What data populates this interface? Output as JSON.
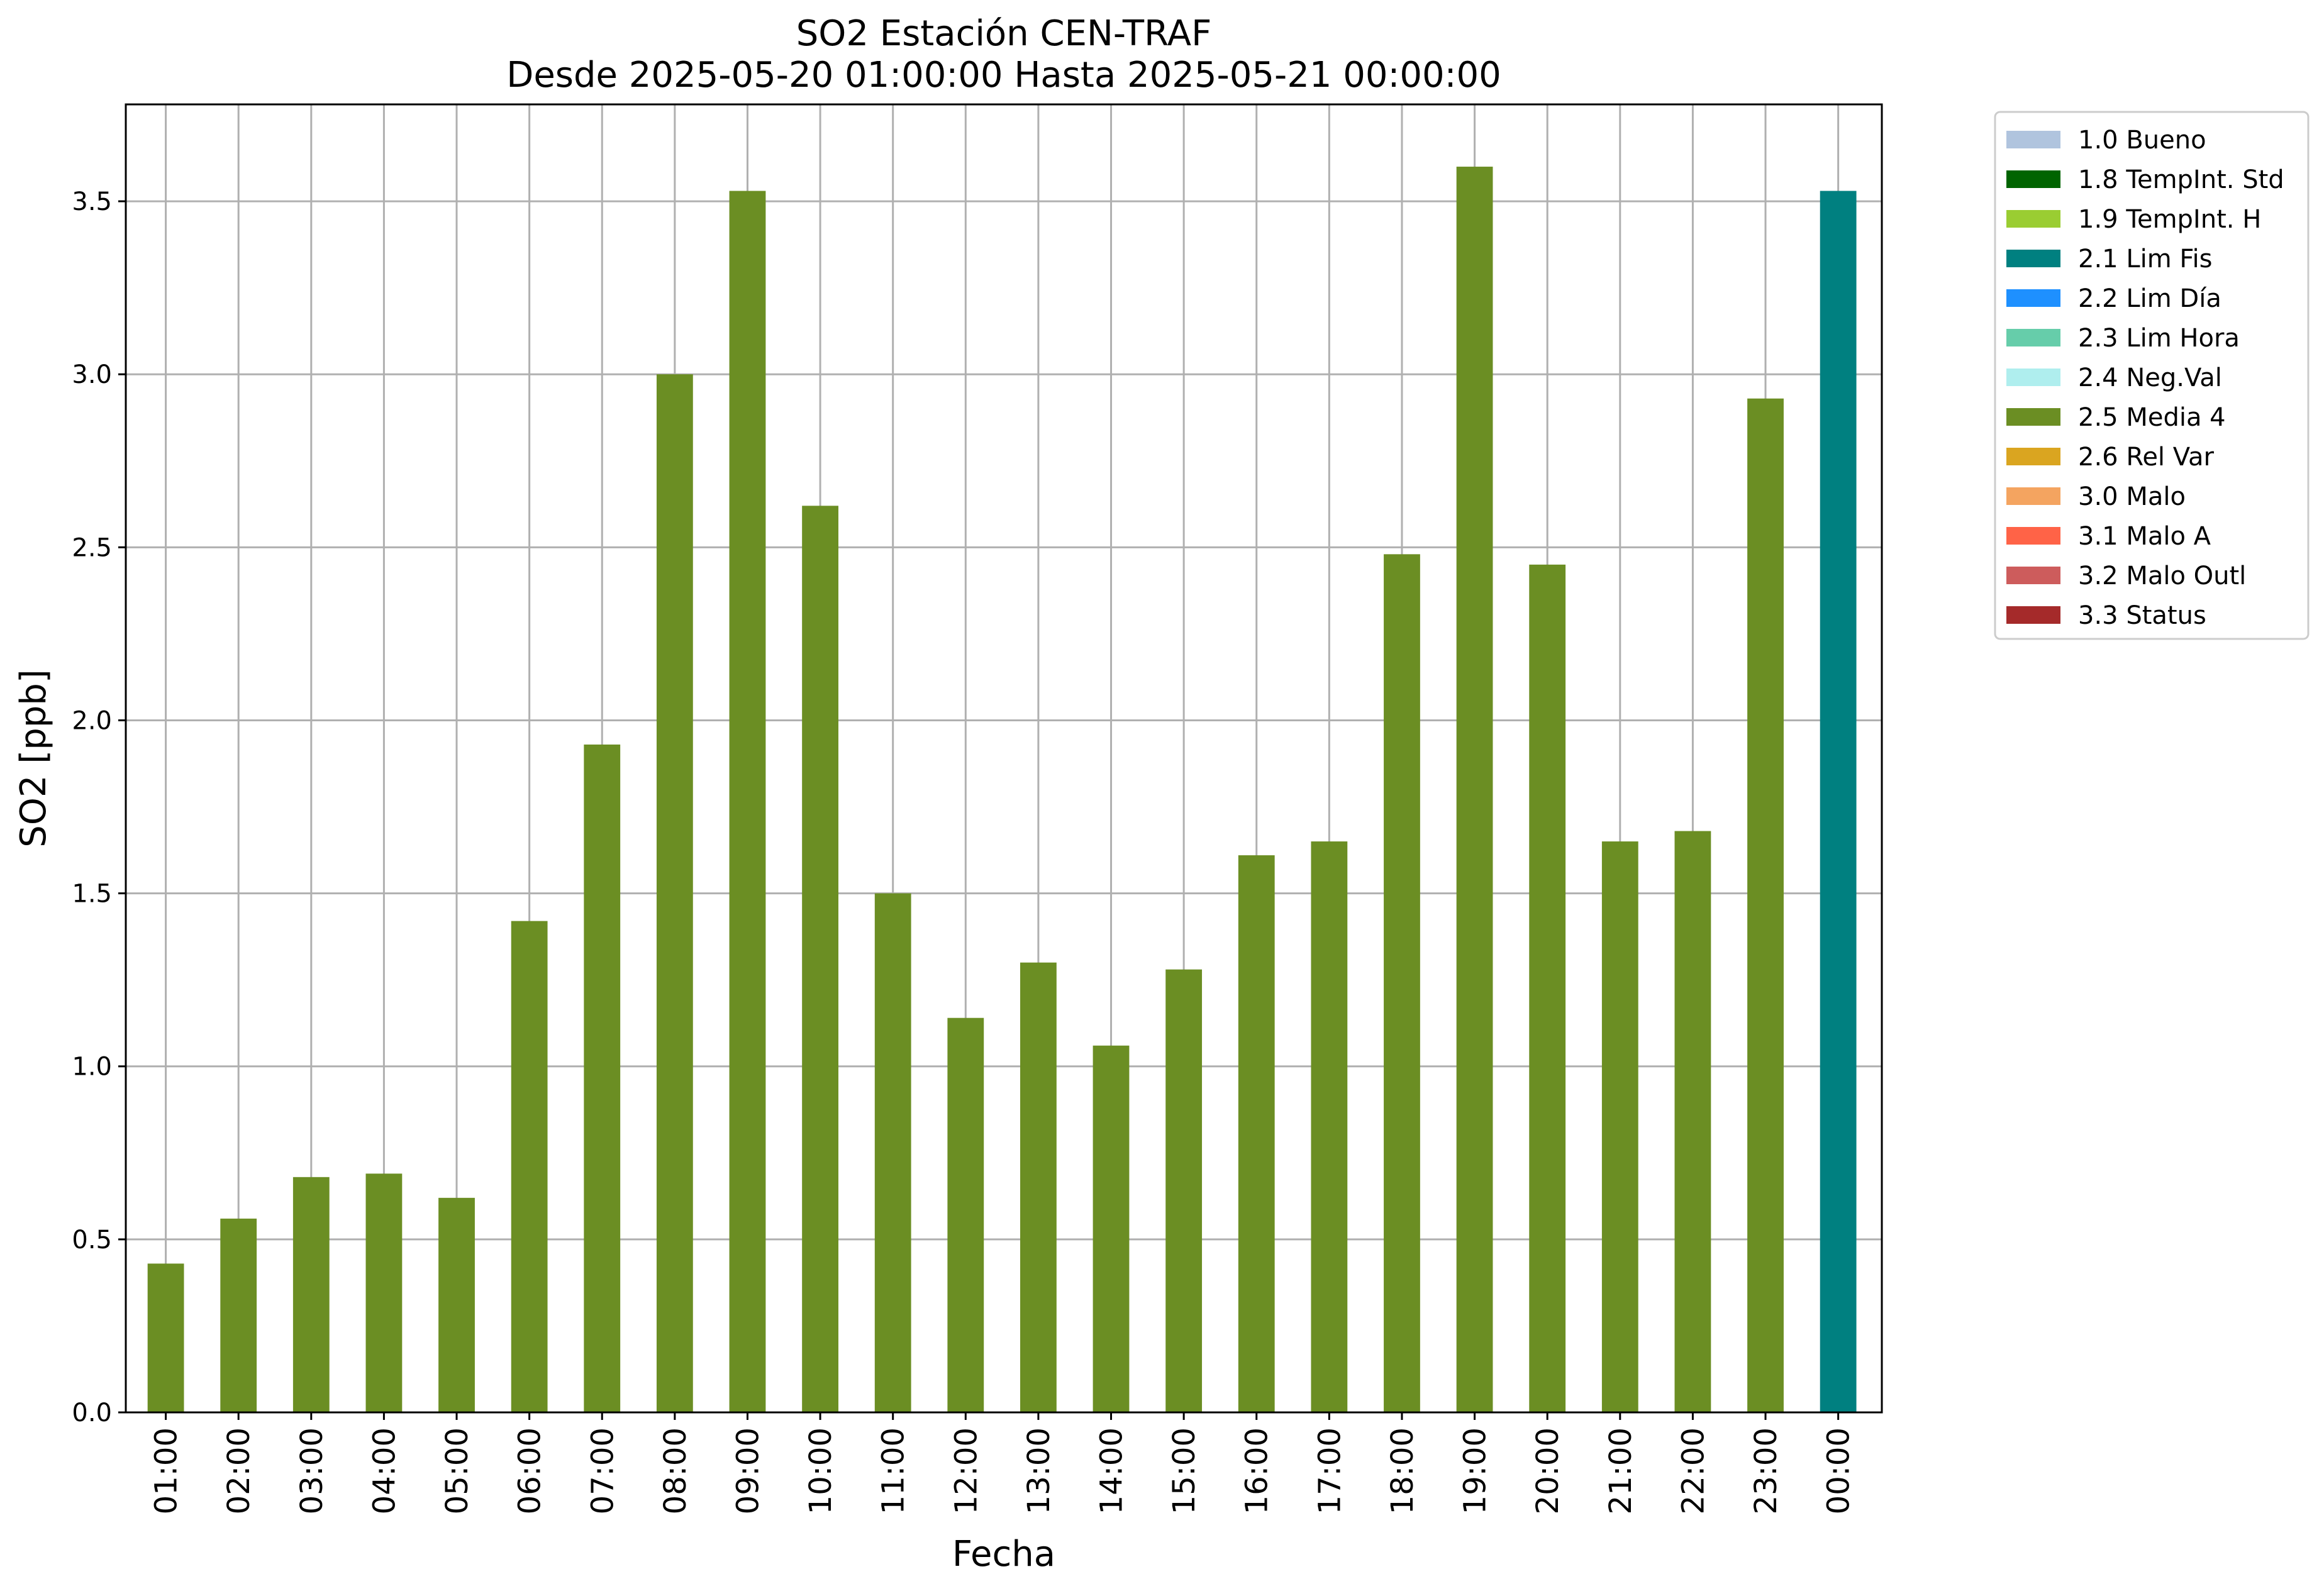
{
  "chart_data": {
    "type": "bar",
    "title": "SO2 Estación CEN-TRAF",
    "subtitle": "Desde 2025-05-20 01:00:00 Hasta 2025-05-21 00:00:00",
    "xlabel": "Fecha",
    "ylabel": "SO2 [ppb]",
    "ylim": [
      0,
      3.78
    ],
    "yticks": [
      "0.0",
      "0.5",
      "1.0",
      "1.5",
      "2.0",
      "2.5",
      "3.0",
      "3.5"
    ],
    "grid": true,
    "legend_position": "outside-right",
    "categories": [
      "01:00",
      "02:00",
      "03:00",
      "04:00",
      "05:00",
      "06:00",
      "07:00",
      "08:00",
      "09:00",
      "10:00",
      "11:00",
      "12:00",
      "13:00",
      "14:00",
      "15:00",
      "16:00",
      "17:00",
      "18:00",
      "19:00",
      "20:00",
      "21:00",
      "22:00",
      "23:00",
      "00:00"
    ],
    "values": [
      0.43,
      0.56,
      0.68,
      0.69,
      0.62,
      1.42,
      1.93,
      3.0,
      3.53,
      2.62,
      1.5,
      1.14,
      1.3,
      1.06,
      1.28,
      1.61,
      1.65,
      2.48,
      3.6,
      2.45,
      1.65,
      1.68,
      2.93,
      3.53
    ],
    "bar_flags": [
      "2.5 Media 4",
      "2.5 Media 4",
      "2.5 Media 4",
      "2.5 Media 4",
      "2.5 Media 4",
      "2.5 Media 4",
      "2.5 Media 4",
      "2.5 Media 4",
      "2.5 Media 4",
      "2.5 Media 4",
      "2.5 Media 4",
      "2.5 Media 4",
      "2.5 Media 4",
      "2.5 Media 4",
      "2.5 Media 4",
      "2.5 Media 4",
      "2.5 Media 4",
      "2.5 Media 4",
      "2.5 Media 4",
      "2.5 Media 4",
      "2.5 Media 4",
      "2.5 Media 4",
      "2.5 Media 4",
      "2.1 Lim Fis"
    ],
    "legend": [
      {
        "label": "1.0 Bueno",
        "color": "#b0c4de"
      },
      {
        "label": "1.8 TempInt. Std",
        "color": "#006400"
      },
      {
        "label": "1.9 TempInt. H",
        "color": "#9acd32"
      },
      {
        "label": "2.1 Lim Fis",
        "color": "#008080"
      },
      {
        "label": "2.2 Lim Día",
        "color": "#1e90ff"
      },
      {
        "label": "2.3 Lim Hora",
        "color": "#66cdaa"
      },
      {
        "label": "2.4 Neg.Val",
        "color": "#afeeee"
      },
      {
        "label": "2.5 Media 4",
        "color": "#6b8e23"
      },
      {
        "label": "2.6 Rel Var",
        "color": "#daa520"
      },
      {
        "label": "3.0 Malo",
        "color": "#f4a460"
      },
      {
        "label": "3.1 Malo A",
        "color": "#ff6347"
      },
      {
        "label": "3.2 Malo Outl",
        "color": "#cd5c5c"
      },
      {
        "label": "3.3 Status",
        "color": "#a52a2a"
      }
    ]
  }
}
